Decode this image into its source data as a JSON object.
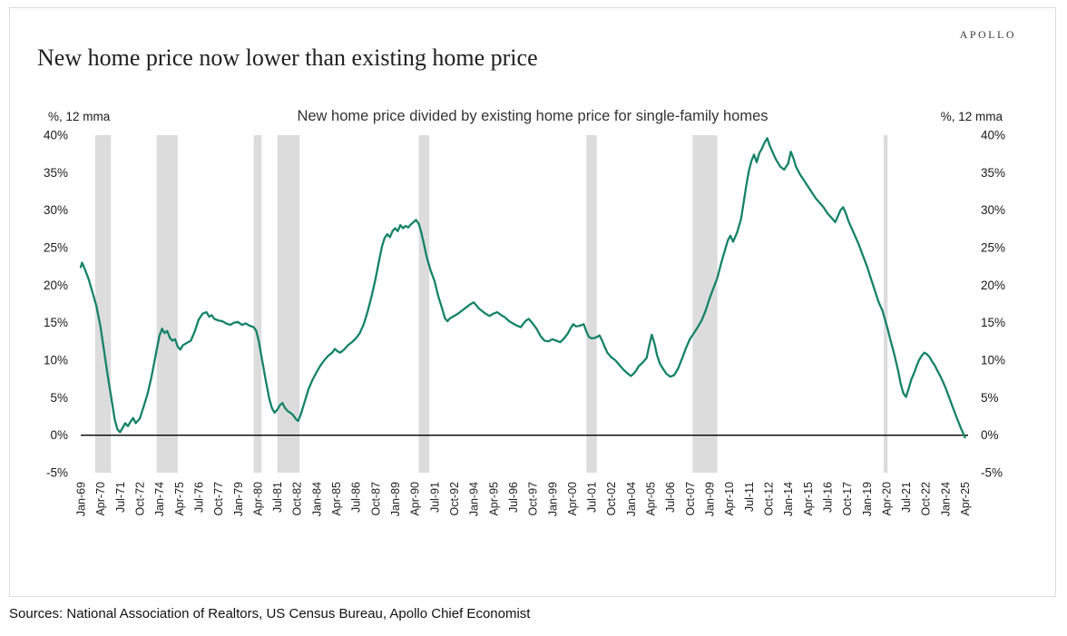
{
  "brand": {
    "logo_text": "APOLLO"
  },
  "header": {
    "title": "New home price now lower than existing home price"
  },
  "chart": {
    "subtitle": "New home price divided by existing home price for single-family homes",
    "left_axis_unit": "%, 12 mma",
    "right_axis_unit": "%, 12 mma"
  },
  "footer": {
    "sources": "Sources: National Association of Realtors, US Census Bureau, Apollo Chief Economist"
  },
  "chart_data": {
    "type": "line",
    "title": "New home price divided by existing home price for single-family homes",
    "xlabel": "",
    "ylabel": "%, 12 mma",
    "ylim": [
      -5,
      40
    ],
    "xlim": [
      1969.0,
      2025.45
    ],
    "grid": false,
    "legend": "none",
    "y_ticks": [
      40,
      35,
      30,
      25,
      20,
      15,
      10,
      5,
      0,
      -5
    ],
    "y_tick_suffix": "%",
    "x_ticks": [
      "Jan-69",
      "Apr-70",
      "Jul-71",
      "Oct-72",
      "Jan-74",
      "Apr-75",
      "Jul-76",
      "Oct-77",
      "Jan-79",
      "Apr-80",
      "Jul-81",
      "Oct-82",
      "Jan-84",
      "Apr-85",
      "Jul-86",
      "Oct-87",
      "Jan-89",
      "Apr-90",
      "Jul-91",
      "Oct-92",
      "Jan-94",
      "Apr-95",
      "Jul-96",
      "Oct-97",
      "Jan-99",
      "Apr-00",
      "Jul-01",
      "Oct-02",
      "Jan-04",
      "Apr-05",
      "Jul-06",
      "Oct-07",
      "Jan-09",
      "Apr-10",
      "Jul-11",
      "Oct-12",
      "Jan-14",
      "Apr-15",
      "Jul-16",
      "Oct-17",
      "Jan-19",
      "Apr-20",
      "Jul-21",
      "Oct-22",
      "Jan-24",
      "Apr-25"
    ],
    "line_color": "#168269",
    "recession_band_color": "#dcdcdc",
    "zero_line_color": "#000000",
    "recession_bands": [
      [
        1969.92,
        1970.92
      ],
      [
        1973.83,
        1975.17
      ],
      [
        1980.0,
        1980.5
      ],
      [
        1981.5,
        1982.92
      ],
      [
        1990.5,
        1991.17
      ],
      [
        2001.17,
        2001.83
      ],
      [
        2007.92,
        2009.5
      ],
      [
        2020.08,
        2020.33
      ]
    ],
    "series": [
      {
        "name": "New home price divided by existing home price",
        "points": [
          [
            1969.0,
            22.4
          ],
          [
            1969.08,
            23.0
          ],
          [
            1969.25,
            22.2
          ],
          [
            1969.5,
            20.8
          ],
          [
            1969.75,
            19.0
          ],
          [
            1970.0,
            17.2
          ],
          [
            1970.25,
            14.5
          ],
          [
            1970.5,
            11.0
          ],
          [
            1970.75,
            7.5
          ],
          [
            1971.0,
            4.2
          ],
          [
            1971.17,
            2.0
          ],
          [
            1971.33,
            0.8
          ],
          [
            1971.5,
            0.4
          ],
          [
            1971.67,
            1.0
          ],
          [
            1971.83,
            1.6
          ],
          [
            1972.0,
            1.2
          ],
          [
            1972.17,
            1.8
          ],
          [
            1972.33,
            2.3
          ],
          [
            1972.5,
            1.6
          ],
          [
            1972.75,
            2.2
          ],
          [
            1973.0,
            3.8
          ],
          [
            1973.25,
            5.5
          ],
          [
            1973.5,
            7.8
          ],
          [
            1973.75,
            10.5
          ],
          [
            1974.0,
            13.2
          ],
          [
            1974.17,
            14.2
          ],
          [
            1974.33,
            13.6
          ],
          [
            1974.5,
            13.9
          ],
          [
            1974.67,
            13.0
          ],
          [
            1974.83,
            12.6
          ],
          [
            1975.0,
            12.8
          ],
          [
            1975.17,
            11.8
          ],
          [
            1975.33,
            11.4
          ],
          [
            1975.5,
            12.0
          ],
          [
            1975.75,
            12.3
          ],
          [
            1976.0,
            12.6
          ],
          [
            1976.25,
            13.8
          ],
          [
            1976.5,
            15.4
          ],
          [
            1976.75,
            16.2
          ],
          [
            1977.0,
            16.4
          ],
          [
            1977.17,
            15.8
          ],
          [
            1977.33,
            16.0
          ],
          [
            1977.5,
            15.5
          ],
          [
            1977.75,
            15.3
          ],
          [
            1978.0,
            15.2
          ],
          [
            1978.25,
            14.9
          ],
          [
            1978.5,
            14.7
          ],
          [
            1978.75,
            15.0
          ],
          [
            1979.0,
            15.1
          ],
          [
            1979.25,
            14.7
          ],
          [
            1979.5,
            14.9
          ],
          [
            1979.75,
            14.6
          ],
          [
            1980.0,
            14.4
          ],
          [
            1980.17,
            13.9
          ],
          [
            1980.33,
            12.5
          ],
          [
            1980.5,
            10.5
          ],
          [
            1980.75,
            7.5
          ],
          [
            1981.0,
            4.8
          ],
          [
            1981.17,
            3.6
          ],
          [
            1981.33,
            3.0
          ],
          [
            1981.5,
            3.4
          ],
          [
            1981.67,
            4.0
          ],
          [
            1981.83,
            4.3
          ],
          [
            1982.0,
            3.6
          ],
          [
            1982.17,
            3.2
          ],
          [
            1982.33,
            3.0
          ],
          [
            1982.5,
            2.7
          ],
          [
            1982.67,
            2.2
          ],
          [
            1982.83,
            1.9
          ],
          [
            1983.0,
            2.8
          ],
          [
            1983.25,
            4.5
          ],
          [
            1983.5,
            6.2
          ],
          [
            1983.75,
            7.4
          ],
          [
            1984.0,
            8.4
          ],
          [
            1984.25,
            9.3
          ],
          [
            1984.5,
            10.0
          ],
          [
            1984.75,
            10.6
          ],
          [
            1985.0,
            11.0
          ],
          [
            1985.17,
            11.5
          ],
          [
            1985.33,
            11.2
          ],
          [
            1985.5,
            11.0
          ],
          [
            1985.75,
            11.4
          ],
          [
            1986.0,
            12.0
          ],
          [
            1986.25,
            12.4
          ],
          [
            1986.5,
            12.9
          ],
          [
            1986.75,
            13.6
          ],
          [
            1987.0,
            14.8
          ],
          [
            1987.25,
            16.5
          ],
          [
            1987.5,
            18.5
          ],
          [
            1987.75,
            20.8
          ],
          [
            1988.0,
            23.5
          ],
          [
            1988.17,
            25.2
          ],
          [
            1988.33,
            26.3
          ],
          [
            1988.5,
            26.8
          ],
          [
            1988.67,
            26.4
          ],
          [
            1988.83,
            27.2
          ],
          [
            1989.0,
            27.6
          ],
          [
            1989.17,
            27.2
          ],
          [
            1989.33,
            28.0
          ],
          [
            1989.5,
            27.6
          ],
          [
            1989.67,
            27.9
          ],
          [
            1989.83,
            27.7
          ],
          [
            1990.0,
            28.1
          ],
          [
            1990.17,
            28.4
          ],
          [
            1990.33,
            28.7
          ],
          [
            1990.5,
            28.2
          ],
          [
            1990.67,
            27.0
          ],
          [
            1990.83,
            25.5
          ],
          [
            1991.0,
            23.8
          ],
          [
            1991.25,
            22.0
          ],
          [
            1991.5,
            20.6
          ],
          [
            1991.75,
            18.5
          ],
          [
            1992.0,
            16.8
          ],
          [
            1992.17,
            15.6
          ],
          [
            1992.33,
            15.2
          ],
          [
            1992.5,
            15.6
          ],
          [
            1992.75,
            15.9
          ],
          [
            1993.0,
            16.2
          ],
          [
            1993.25,
            16.6
          ],
          [
            1993.5,
            17.0
          ],
          [
            1993.75,
            17.4
          ],
          [
            1994.0,
            17.7
          ],
          [
            1994.17,
            17.3
          ],
          [
            1994.33,
            16.9
          ],
          [
            1994.5,
            16.6
          ],
          [
            1994.75,
            16.2
          ],
          [
            1995.0,
            15.9
          ],
          [
            1995.25,
            16.2
          ],
          [
            1995.5,
            16.4
          ],
          [
            1995.75,
            16.0
          ],
          [
            1996.0,
            15.7
          ],
          [
            1996.25,
            15.2
          ],
          [
            1996.5,
            14.9
          ],
          [
            1996.75,
            14.6
          ],
          [
            1997.0,
            14.4
          ],
          [
            1997.17,
            14.9
          ],
          [
            1997.33,
            15.3
          ],
          [
            1997.5,
            15.5
          ],
          [
            1997.75,
            14.9
          ],
          [
            1998.0,
            14.2
          ],
          [
            1998.25,
            13.2
          ],
          [
            1998.5,
            12.6
          ],
          [
            1998.75,
            12.5
          ],
          [
            1999.0,
            12.8
          ],
          [
            1999.25,
            12.6
          ],
          [
            1999.5,
            12.4
          ],
          [
            1999.75,
            12.9
          ],
          [
            2000.0,
            13.6
          ],
          [
            2000.17,
            14.3
          ],
          [
            2000.33,
            14.8
          ],
          [
            2000.5,
            14.5
          ],
          [
            2000.75,
            14.6
          ],
          [
            2001.0,
            14.8
          ],
          [
            2001.17,
            13.8
          ],
          [
            2001.33,
            13.1
          ],
          [
            2001.5,
            12.9
          ],
          [
            2001.75,
            13.0
          ],
          [
            2002.0,
            13.3
          ],
          [
            2002.17,
            12.6
          ],
          [
            2002.33,
            11.8
          ],
          [
            2002.5,
            11.0
          ],
          [
            2002.75,
            10.4
          ],
          [
            2003.0,
            10.0
          ],
          [
            2003.25,
            9.4
          ],
          [
            2003.5,
            8.8
          ],
          [
            2003.75,
            8.3
          ],
          [
            2004.0,
            7.9
          ],
          [
            2004.17,
            8.2
          ],
          [
            2004.33,
            8.6
          ],
          [
            2004.5,
            9.2
          ],
          [
            2004.75,
            9.7
          ],
          [
            2005.0,
            10.3
          ],
          [
            2005.17,
            12.0
          ],
          [
            2005.33,
            13.4
          ],
          [
            2005.5,
            12.2
          ],
          [
            2005.67,
            10.6
          ],
          [
            2005.83,
            9.6
          ],
          [
            2006.0,
            9.0
          ],
          [
            2006.25,
            8.2
          ],
          [
            2006.5,
            7.8
          ],
          [
            2006.75,
            8.0
          ],
          [
            2007.0,
            8.9
          ],
          [
            2007.25,
            10.2
          ],
          [
            2007.5,
            11.6
          ],
          [
            2007.75,
            12.8
          ],
          [
            2008.0,
            13.6
          ],
          [
            2008.25,
            14.4
          ],
          [
            2008.5,
            15.3
          ],
          [
            2008.75,
            16.6
          ],
          [
            2009.0,
            18.2
          ],
          [
            2009.25,
            19.6
          ],
          [
            2009.5,
            21.0
          ],
          [
            2009.75,
            23.0
          ],
          [
            2010.0,
            24.8
          ],
          [
            2010.17,
            26.0
          ],
          [
            2010.33,
            26.6
          ],
          [
            2010.5,
            25.8
          ],
          [
            2010.75,
            27.0
          ],
          [
            2011.0,
            28.8
          ],
          [
            2011.17,
            31.0
          ],
          [
            2011.33,
            33.2
          ],
          [
            2011.5,
            35.2
          ],
          [
            2011.67,
            36.6
          ],
          [
            2011.83,
            37.4
          ],
          [
            2012.0,
            36.4
          ],
          [
            2012.17,
            37.6
          ],
          [
            2012.33,
            38.2
          ],
          [
            2012.5,
            39.0
          ],
          [
            2012.67,
            39.6
          ],
          [
            2012.83,
            38.6
          ],
          [
            2013.0,
            37.8
          ],
          [
            2013.17,
            37.0
          ],
          [
            2013.33,
            36.4
          ],
          [
            2013.5,
            35.8
          ],
          [
            2013.75,
            35.4
          ],
          [
            2014.0,
            36.2
          ],
          [
            2014.17,
            37.8
          ],
          [
            2014.33,
            37.0
          ],
          [
            2014.5,
            35.8
          ],
          [
            2014.75,
            34.8
          ],
          [
            2015.0,
            34.0
          ],
          [
            2015.25,
            33.2
          ],
          [
            2015.5,
            32.4
          ],
          [
            2015.75,
            31.6
          ],
          [
            2016.0,
            31.0
          ],
          [
            2016.25,
            30.4
          ],
          [
            2016.5,
            29.6
          ],
          [
            2016.75,
            29.0
          ],
          [
            2017.0,
            28.4
          ],
          [
            2017.17,
            29.2
          ],
          [
            2017.33,
            30.0
          ],
          [
            2017.5,
            30.4
          ],
          [
            2017.67,
            29.6
          ],
          [
            2017.83,
            28.6
          ],
          [
            2018.0,
            27.8
          ],
          [
            2018.25,
            26.6
          ],
          [
            2018.5,
            25.4
          ],
          [
            2018.75,
            24.0
          ],
          [
            2019.0,
            22.6
          ],
          [
            2019.25,
            21.0
          ],
          [
            2019.5,
            19.4
          ],
          [
            2019.75,
            17.8
          ],
          [
            2020.0,
            16.6
          ],
          [
            2020.17,
            15.4
          ],
          [
            2020.33,
            14.2
          ],
          [
            2020.5,
            12.8
          ],
          [
            2020.75,
            10.8
          ],
          [
            2021.0,
            8.6
          ],
          [
            2021.17,
            6.8
          ],
          [
            2021.33,
            5.6
          ],
          [
            2021.5,
            5.1
          ],
          [
            2021.67,
            6.2
          ],
          [
            2021.83,
            7.4
          ],
          [
            2022.0,
            8.2
          ],
          [
            2022.17,
            9.2
          ],
          [
            2022.33,
            10.0
          ],
          [
            2022.5,
            10.6
          ],
          [
            2022.67,
            11.0
          ],
          [
            2022.83,
            10.8
          ],
          [
            2023.0,
            10.4
          ],
          [
            2023.17,
            9.8
          ],
          [
            2023.33,
            9.3
          ],
          [
            2023.5,
            8.6
          ],
          [
            2023.75,
            7.6
          ],
          [
            2024.0,
            6.4
          ],
          [
            2024.25,
            5.0
          ],
          [
            2024.5,
            3.6
          ],
          [
            2024.75,
            2.2
          ],
          [
            2025.0,
            0.9
          ],
          [
            2025.25,
            -0.3
          ]
        ]
      }
    ]
  }
}
